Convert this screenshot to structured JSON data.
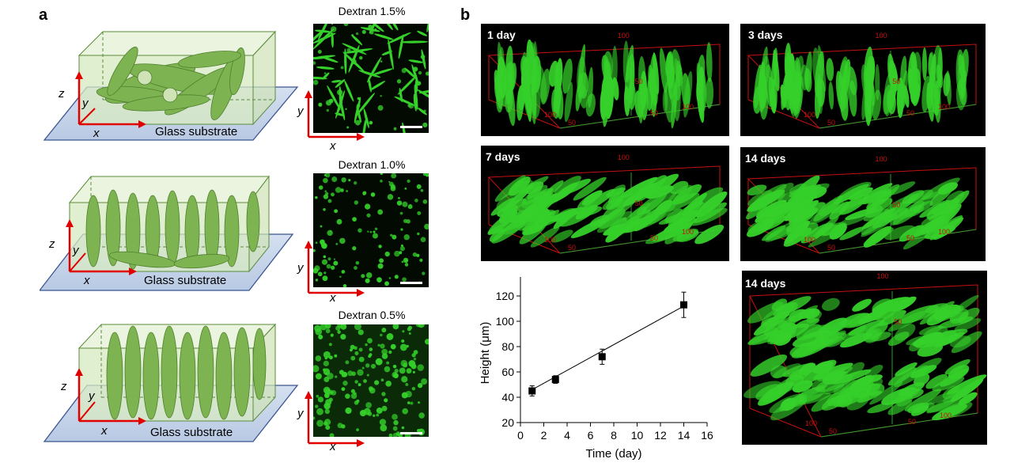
{
  "panel_a": {
    "letter": "a",
    "rows": [
      {
        "micro_title": "Dextran 1.5%",
        "substrate": "Glass substrate",
        "order": "random"
      },
      {
        "micro_title": "Dextran 1.0%",
        "substrate": "Glass substrate",
        "order": "partial"
      },
      {
        "micro_title": "Dextran 0.5%",
        "substrate": "Glass substrate",
        "order": "vertical"
      }
    ],
    "axis": {
      "x": "x",
      "y": "y",
      "z": "z"
    }
  },
  "panel_b": {
    "letter": "b",
    "views": [
      {
        "label": "1 day",
        "tick_top": "100",
        "tick_mid": "100",
        "tick_y": "50",
        "tick_x": "50",
        "tick_r": "100",
        "tick_z": "50"
      },
      {
        "label": "3 days",
        "tick_top": "100",
        "tick_mid": "100",
        "tick_y": "50",
        "tick_x": "50",
        "tick_r": "100",
        "tick_z": "50"
      },
      {
        "label": "7 days",
        "tick_top": "100",
        "tick_mid": "100",
        "tick_y": "50",
        "tick_x": "50",
        "tick_r": "100",
        "tick_z": "50"
      },
      {
        "label": "14 days",
        "tick_top": "100",
        "tick_mid": "100",
        "tick_y": "50",
        "tick_x": "50",
        "tick_r": "100",
        "tick_z": "50"
      },
      {
        "label": "14 days",
        "tick_top": "100",
        "tick_mid": "100",
        "tick_y": "50",
        "tick_x": "50",
        "tick_r": "100",
        "tick_z": "50"
      }
    ]
  },
  "chart_data": {
    "type": "line",
    "x": [
      1,
      3,
      7,
      14
    ],
    "values": [
      45,
      54,
      72,
      113
    ],
    "errors": [
      4,
      3,
      6,
      10
    ],
    "xlabel": "Time (day)",
    "ylabel": "Height (μm)",
    "xlim": [
      0,
      16
    ],
    "ylim": [
      20,
      130
    ],
    "xticks": [
      0,
      2,
      4,
      6,
      8,
      10,
      12,
      14,
      16
    ],
    "yticks": [
      20,
      40,
      60,
      80,
      100,
      120
    ],
    "fit": {
      "x0": 1,
      "y0": 46,
      "x1": 14,
      "y1": 112
    },
    "marker_color": "#000000",
    "grid": false
  },
  "colors": {
    "axis_red": "#e00000",
    "fluor_green": "#35d02a",
    "box_green": "#dcebc8",
    "substrate_blue": "#c9d6ea",
    "cell_green": "#7db350"
  }
}
